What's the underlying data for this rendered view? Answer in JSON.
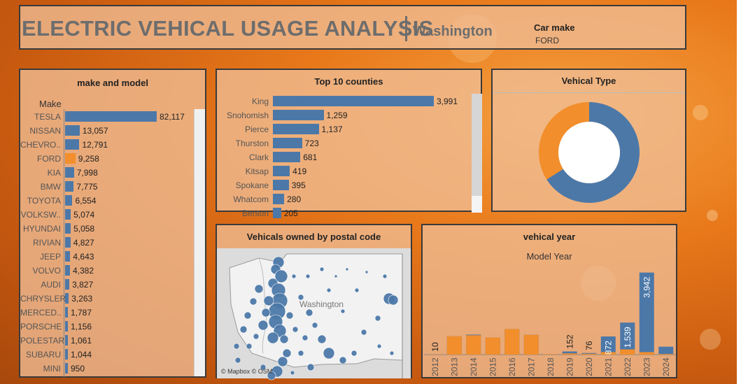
{
  "header": {
    "title": "ELECTRIC VEHICAL USAGE ANALYSIS",
    "subtitle": "Washington",
    "filter_label": "Car make",
    "filter_value": "FORD"
  },
  "colors": {
    "primary": "#4c78a8",
    "highlight": "#f28e2b",
    "background": "#e8781a"
  },
  "make_panel": {
    "title": "make and model",
    "axis_label": "Make",
    "selected": "FORD",
    "items": [
      {
        "label": "TESLA",
        "value": 82117,
        "display": "82,117"
      },
      {
        "label": "NISSAN",
        "value": 13057,
        "display": "13,057"
      },
      {
        "label": "CHEVRO..",
        "value": 12791,
        "display": "12,791"
      },
      {
        "label": "FORD",
        "value": 9258,
        "display": "9,258"
      },
      {
        "label": "KIA",
        "value": 7998,
        "display": "7,998"
      },
      {
        "label": "BMW",
        "value": 7775,
        "display": "7,775"
      },
      {
        "label": "TOYOTA",
        "value": 6554,
        "display": "6,554"
      },
      {
        "label": "VOLKSW..",
        "value": 5074,
        "display": "5,074"
      },
      {
        "label": "HYUNDAI",
        "value": 5058,
        "display": "5,058"
      },
      {
        "label": "RIVIAN",
        "value": 4827,
        "display": "4,827"
      },
      {
        "label": "JEEP",
        "value": 4643,
        "display": "4,643"
      },
      {
        "label": "VOLVO",
        "value": 4382,
        "display": "4,382"
      },
      {
        "label": "AUDI",
        "value": 3827,
        "display": "3,827"
      },
      {
        "label": "CHRYSLER",
        "value": 3263,
        "display": "3,263"
      },
      {
        "label": "MERCED..",
        "value": 1787,
        "display": "1,787"
      },
      {
        "label": "PORSCHE",
        "value": 1156,
        "display": "1,156"
      },
      {
        "label": "POLESTAR",
        "value": 1061,
        "display": "1,061"
      },
      {
        "label": "SUBARU",
        "value": 1044,
        "display": "1,044"
      },
      {
        "label": "MINI",
        "value": 950,
        "display": "950"
      }
    ]
  },
  "county_panel": {
    "title": "Top 10 counties",
    "items": [
      {
        "label": "King",
        "value": 3991,
        "display": "3,991"
      },
      {
        "label": "Snohomish",
        "value": 1259,
        "display": "1,259"
      },
      {
        "label": "Pierce",
        "value": 1137,
        "display": "1,137"
      },
      {
        "label": "Thurston",
        "value": 723,
        "display": "723"
      },
      {
        "label": "Clark",
        "value": 681,
        "display": "681"
      },
      {
        "label": "Kitsap",
        "value": 419,
        "display": "419"
      },
      {
        "label": "Spokane",
        "value": 395,
        "display": "395"
      },
      {
        "label": "Whatcom",
        "value": 280,
        "display": "280"
      },
      {
        "label": "Benton",
        "value": 205,
        "display": "205"
      }
    ]
  },
  "type_panel": {
    "title": "Vehical Type",
    "slices": [
      {
        "name": "blue",
        "share": 0.66,
        "color": "#4c78a8"
      },
      {
        "name": "orange",
        "share": 0.34,
        "color": "#f28e2b"
      }
    ]
  },
  "map_panel": {
    "title": "Vehicals owned by postal code",
    "region_label": "Washington",
    "credit": "© Mapbox © OSM"
  },
  "year_panel": {
    "title": "vehical year",
    "axis_label": "Model Year"
  },
  "chart_data": [
    {
      "type": "bar",
      "title": "make and model",
      "ylabel": "Make",
      "categories": [
        "TESLA",
        "NISSAN",
        "CHEVRO..",
        "FORD",
        "KIA",
        "BMW",
        "TOYOTA",
        "VOLKSW..",
        "HYUNDAI",
        "RIVIAN",
        "JEEP",
        "VOLVO",
        "AUDI",
        "CHRYSLER",
        "MERCED..",
        "PORSCHE",
        "POLESTAR",
        "SUBARU",
        "MINI"
      ],
      "values": [
        82117,
        13057,
        12791,
        9258,
        7998,
        7775,
        6554,
        5074,
        5058,
        4827,
        4643,
        4382,
        3827,
        3263,
        1787,
        1156,
        1061,
        1044,
        950
      ]
    },
    {
      "type": "bar",
      "title": "Top 10 counties",
      "categories": [
        "King",
        "Snohomish",
        "Pierce",
        "Thurston",
        "Clark",
        "Kitsap",
        "Spokane",
        "Whatcom",
        "Benton"
      ],
      "values": [
        3991,
        1259,
        1137,
        723,
        681,
        419,
        395,
        280,
        205
      ]
    },
    {
      "type": "pie",
      "title": "Vehical Type",
      "values": [
        0.66,
        0.34
      ]
    },
    {
      "type": "bar",
      "title": "vehical year",
      "xlabel": "Model Year",
      "categories": [
        "2012",
        "2013",
        "2014",
        "2015",
        "2016",
        "2017",
        "2018",
        "2019",
        "2020",
        "2021",
        "2022",
        "2023",
        "2024"
      ],
      "series": [
        {
          "values": [
            10,
            880,
            960,
            820,
            1230,
            950,
            20,
            152,
            76,
            872,
            1539,
            3942,
            380
          ],
          "labels": [
            "10",
            "",
            "",
            "",
            "",
            "",
            "",
            "152",
            "76",
            "872",
            "1539",
            "3942",
            ""
          ]
        },
        {
          "values": [
            10,
            880,
            930,
            820,
            1230,
            950,
            20,
            60,
            40,
            120,
            250,
            120,
            30
          ]
        }
      ],
      "ylim": [
        0,
        4300
      ]
    }
  ]
}
